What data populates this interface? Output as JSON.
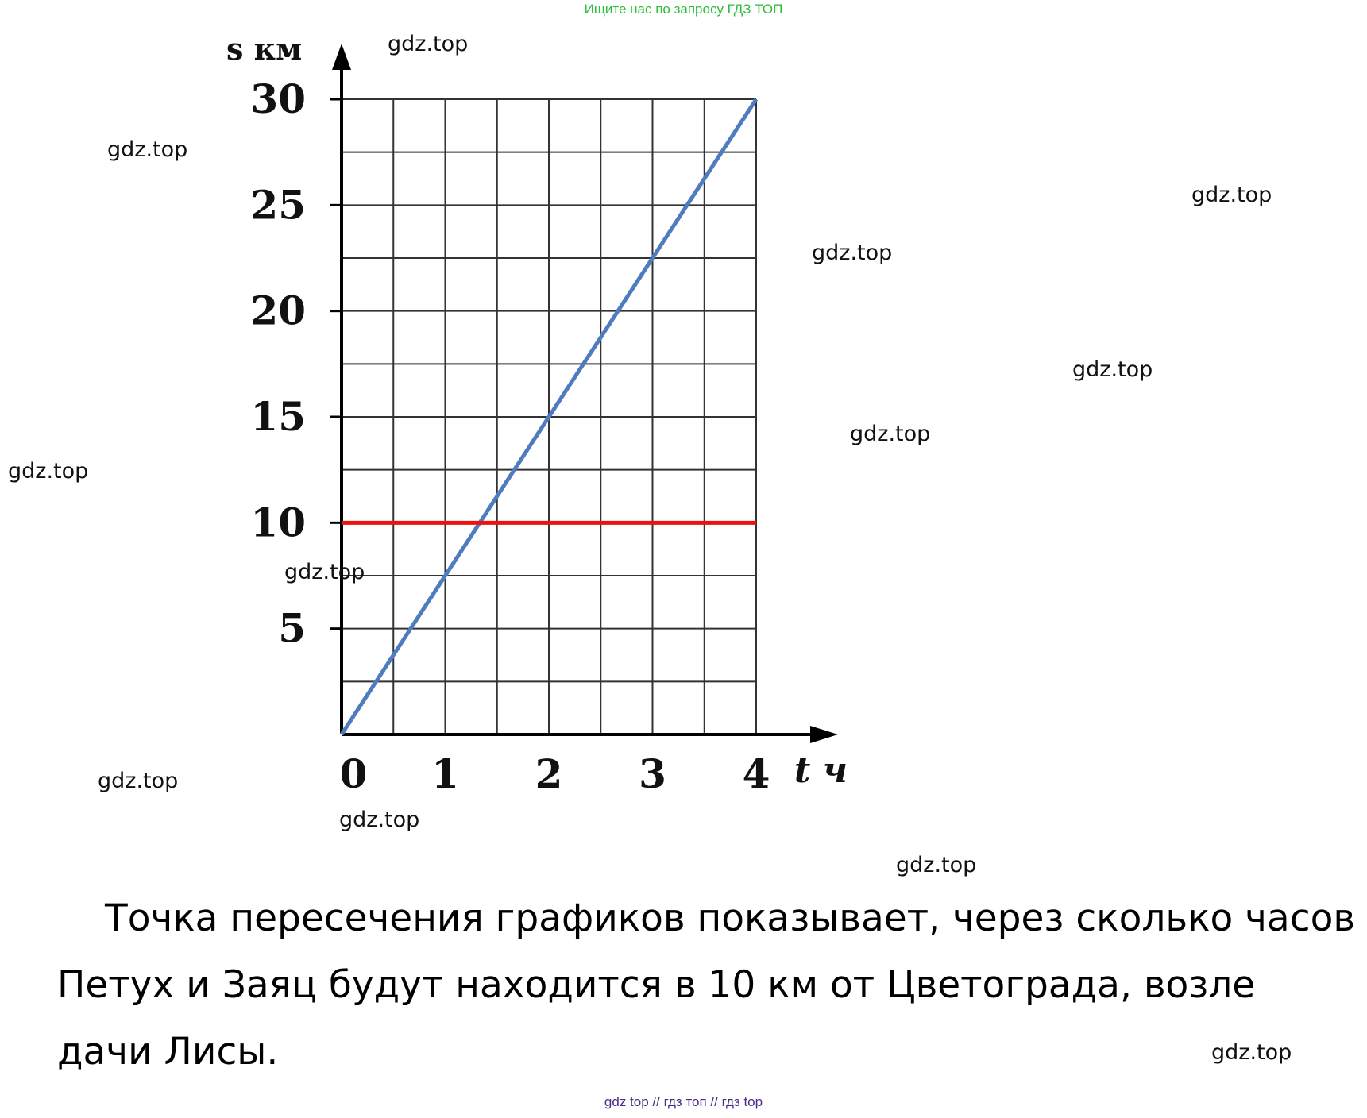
{
  "banner": "Ищите нас по запросу ГДЗ ТОП",
  "watermark": "gdz.top",
  "chart_data": {
    "type": "line",
    "ylabel": "s км",
    "xlabel": "t ч",
    "xlim": [
      0,
      4
    ],
    "ylim": [
      0,
      30
    ],
    "x_ticks": [
      "0",
      "1",
      "2",
      "3",
      "4"
    ],
    "y_ticks": [
      "5",
      "10",
      "15",
      "20",
      "25",
      "30"
    ],
    "grid": true,
    "series": [
      {
        "color": "#4f7cbf",
        "x": [
          0,
          4
        ],
        "y": [
          0,
          30
        ]
      },
      {
        "color": "#ee1111",
        "x": [
          0,
          4
        ],
        "y": [
          10,
          10
        ]
      }
    ]
  },
  "caption": "Точка пересечения графиков показывает, через сколько часов Петух и Заяц будут находится в 10 км от Цветограда, возле дачи Лисы.",
  "bottom_links": "gdz top  //  гдз топ  //  гдз top"
}
